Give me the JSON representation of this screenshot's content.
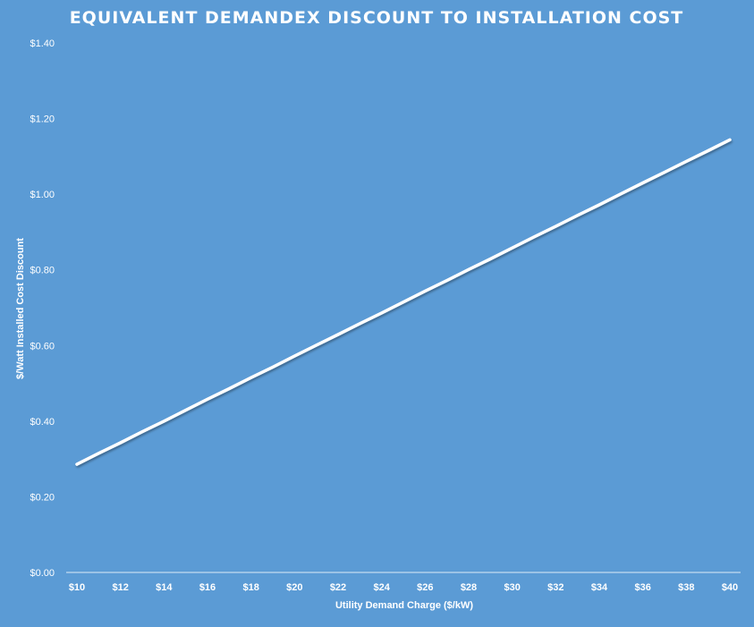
{
  "chart_data": {
    "type": "line",
    "title": "EQUIVALENT DEMANDEX DISCOUNT TO INSTALLATION COST",
    "xlabel": "Utility Demand Charge ($/kW)",
    "ylabel": "$/Watt Installed Cost Discount",
    "ylim": [
      0,
      1.4
    ],
    "yticks": [
      "$0.00",
      "$0.20",
      "$0.40",
      "$0.60",
      "$0.80",
      "$1.00",
      "$1.20",
      "$1.40"
    ],
    "xtick_labels": [
      "$10",
      "$12",
      "$14",
      "$16",
      "$18",
      "$20",
      "$22",
      "$24",
      "$26",
      "$28",
      "$30",
      "$32",
      "$34",
      "$36",
      "$38",
      "$40"
    ],
    "x": [
      10,
      11,
      12,
      13,
      14,
      15,
      16,
      17,
      18,
      19,
      20,
      21,
      22,
      23,
      24,
      25,
      26,
      27,
      28,
      29,
      30,
      31,
      32,
      33,
      34,
      35,
      36,
      37,
      38,
      39,
      40
    ],
    "series": [
      {
        "values": [
          0.286,
          0.315,
          0.343,
          0.372,
          0.4,
          0.429,
          0.458,
          0.486,
          0.515,
          0.543,
          0.572,
          0.601,
          0.629,
          0.658,
          0.686,
          0.715,
          0.744,
          0.772,
          0.801,
          0.829,
          0.858,
          0.887,
          0.915,
          0.944,
          0.972,
          1.001,
          1.03,
          1.058,
          1.087,
          1.115,
          1.144
        ]
      }
    ],
    "grid": false,
    "drop_lines": true,
    "colors": {
      "background": "#5b9bd5",
      "line": "#ffffff",
      "text": "#ffffff"
    }
  }
}
